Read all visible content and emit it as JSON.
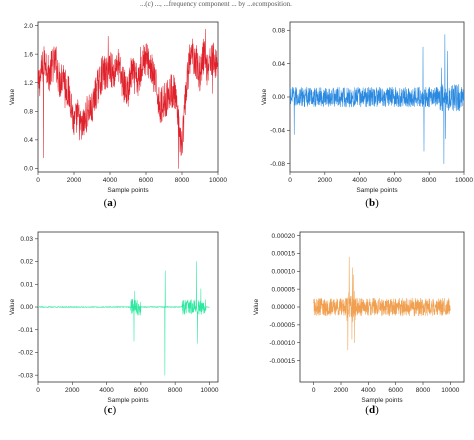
{
  "caption_fragment": "...(c) ..., ...frequency component ... by ...ecomposition.",
  "chart_data": [
    {
      "id": "a",
      "type": "line",
      "panel_label": "a",
      "color": "#e0202a",
      "xlabel": "Sample points",
      "ylabel": "Value",
      "xlim": [
        0,
        10000
      ],
      "ylim": [
        -0.05,
        2.05
      ],
      "xticks": [
        0,
        2000,
        4000,
        6000,
        8000,
        10000
      ],
      "xtick_labels": [
        "0",
        "2000",
        "4000",
        "6000",
        "8000",
        "10000"
      ],
      "yticks": [
        0.0,
        0.4,
        0.8,
        1.2,
        1.6,
        2.0
      ],
      "ytick_labels": [
        "0.0",
        "0.4",
        "0.8",
        "1.2",
        "1.6",
        "2.0"
      ],
      "x": [
        0,
        200,
        400,
        600,
        800,
        1000,
        1200,
        1400,
        1600,
        1800,
        2000,
        2200,
        2400,
        2600,
        2800,
        3000,
        3200,
        3400,
        3600,
        3800,
        4000,
        4200,
        4400,
        4600,
        4800,
        5000,
        5200,
        5400,
        5600,
        5800,
        6000,
        6200,
        6400,
        6600,
        6800,
        7000,
        7200,
        7400,
        7600,
        7800,
        8000,
        8200,
        8400,
        8600,
        8800,
        9000,
        9200,
        9400,
        9600,
        9800,
        10000
      ],
      "y": [
        1.15,
        1.35,
        1.55,
        1.3,
        1.45,
        1.5,
        1.2,
        1.35,
        1.1,
        1.0,
        0.6,
        0.75,
        0.55,
        0.65,
        0.85,
        0.8,
        1.05,
        1.2,
        1.35,
        1.3,
        1.45,
        1.3,
        1.5,
        1.3,
        1.15,
        1.05,
        1.35,
        1.25,
        1.2,
        1.5,
        1.55,
        1.45,
        1.3,
        1.1,
        0.85,
        0.95,
        1.0,
        1.1,
        1.05,
        0.6,
        0.3,
        1.0,
        1.5,
        1.6,
        1.5,
        1.3,
        1.6,
        1.4,
        1.55,
        1.5,
        1.45
      ],
      "noise": 0.25,
      "spikes": [
        [
          300,
          0.15
        ],
        [
          1500,
          0.85
        ],
        [
          3900,
          1.85
        ],
        [
          5700,
          1.7
        ],
        [
          7800,
          0.0
        ],
        [
          9300,
          1.95
        ],
        [
          9700,
          1.05
        ]
      ]
    },
    {
      "id": "b",
      "type": "line",
      "panel_label": "b",
      "color": "#2b8ae0",
      "xlabel": "Sample points",
      "ylabel": "Value",
      "xlim": [
        0,
        10000
      ],
      "ylim": [
        -0.09,
        0.09
      ],
      "xticks": [
        0,
        2000,
        4000,
        6000,
        8000,
        10000
      ],
      "xtick_labels": [
        "0",
        "2000",
        "4000",
        "6000",
        "8000",
        "10000"
      ],
      "yticks": [
        -0.08,
        -0.04,
        0.0,
        0.04,
        0.08
      ],
      "ytick_labels": [
        "-0.08",
        "-0.04",
        "0.00",
        "0.04",
        "0.08"
      ],
      "x": [
        0,
        1000,
        2000,
        3000,
        4000,
        5000,
        6000,
        7000,
        8000,
        9000,
        10000
      ],
      "y": [
        0.0,
        0.0,
        0.0,
        0.0,
        0.0,
        0.0,
        0.0,
        0.0,
        0.0,
        0.0,
        0.0
      ],
      "noise": 0.012,
      "spikes": [
        [
          7650,
          0.06
        ],
        [
          7700,
          -0.065
        ],
        [
          8850,
          -0.08
        ],
        [
          8900,
          0.075
        ],
        [
          8950,
          -0.05
        ],
        [
          9050,
          0.055
        ],
        [
          250,
          -0.045
        ],
        [
          8700,
          0.035
        ]
      ]
    },
    {
      "id": "c",
      "type": "line",
      "panel_label": "c",
      "color": "#2ee8a0",
      "xlabel": "Sample points",
      "ylabel": "Value",
      "xlim": [
        0,
        10500
      ],
      "ylim": [
        -0.033,
        0.033
      ],
      "xticks": [
        0,
        2000,
        4000,
        6000,
        8000,
        10000
      ],
      "xtick_labels": [
        "0",
        "2000",
        "4000",
        "6000",
        "8000",
        "10000"
      ],
      "yticks": [
        -0.03,
        -0.02,
        -0.01,
        0.0,
        0.01,
        0.02,
        0.03
      ],
      "ytick_labels": [
        "-0.03",
        "-0.02",
        "-0.01",
        "0.00",
        "0.01",
        "0.02",
        "0.03"
      ],
      "x": [
        0,
        1000,
        2000,
        3000,
        4000,
        5000,
        6000,
        7000,
        8000,
        9000,
        10000
      ],
      "y": [
        0.0,
        0.0,
        0.0,
        0.0,
        0.0,
        0.0,
        0.0,
        0.0,
        0.0,
        0.0,
        0.0
      ],
      "noise": 0.0015,
      "spikes": [
        [
          5600,
          -0.015
        ],
        [
          5650,
          0.007
        ],
        [
          7400,
          -0.03
        ],
        [
          7420,
          0.016
        ],
        [
          9250,
          0.02
        ],
        [
          9300,
          -0.016
        ],
        [
          9500,
          0.008
        ]
      ]
    },
    {
      "id": "d",
      "type": "line",
      "panel_label": "d",
      "color": "#f0a050",
      "xlabel": "Sample points",
      "ylabel": "Value",
      "xlim": [
        -1000,
        11000
      ],
      "ylim": [
        -0.00021,
        0.00021
      ],
      "xticks": [
        0,
        2000,
        4000,
        6000,
        8000,
        10000
      ],
      "xtick_labels": [
        "0",
        "2000",
        "4000",
        "6000",
        "8000",
        "10000"
      ],
      "yticks": [
        -0.00015,
        -0.0001,
        -5e-05,
        0.0,
        5e-05,
        0.0001,
        0.00015,
        0.0002
      ],
      "ytick_labels": [
        "-0.00015",
        "-0.00010",
        "-0.00005",
        "0.00000",
        "0.00005",
        "0.00010",
        "0.00015",
        "0.00020"
      ],
      "x": [
        0,
        1000,
        2000,
        3000,
        4000,
        5000,
        6000,
        7000,
        8000,
        9000,
        10000
      ],
      "y": [
        0.0,
        0.0,
        0.0,
        0.0,
        0.0,
        0.0,
        0.0,
        0.0,
        0.0,
        0.0,
        0.0
      ],
      "noise": 2.5e-05,
      "spikes": [
        [
          2500,
          -0.00012
        ],
        [
          2600,
          0.00014
        ],
        [
          2800,
          -9e-05
        ],
        [
          2850,
          0.00011
        ],
        [
          2900,
          9e-05
        ],
        [
          3000,
          -0.0001
        ]
      ]
    }
  ]
}
